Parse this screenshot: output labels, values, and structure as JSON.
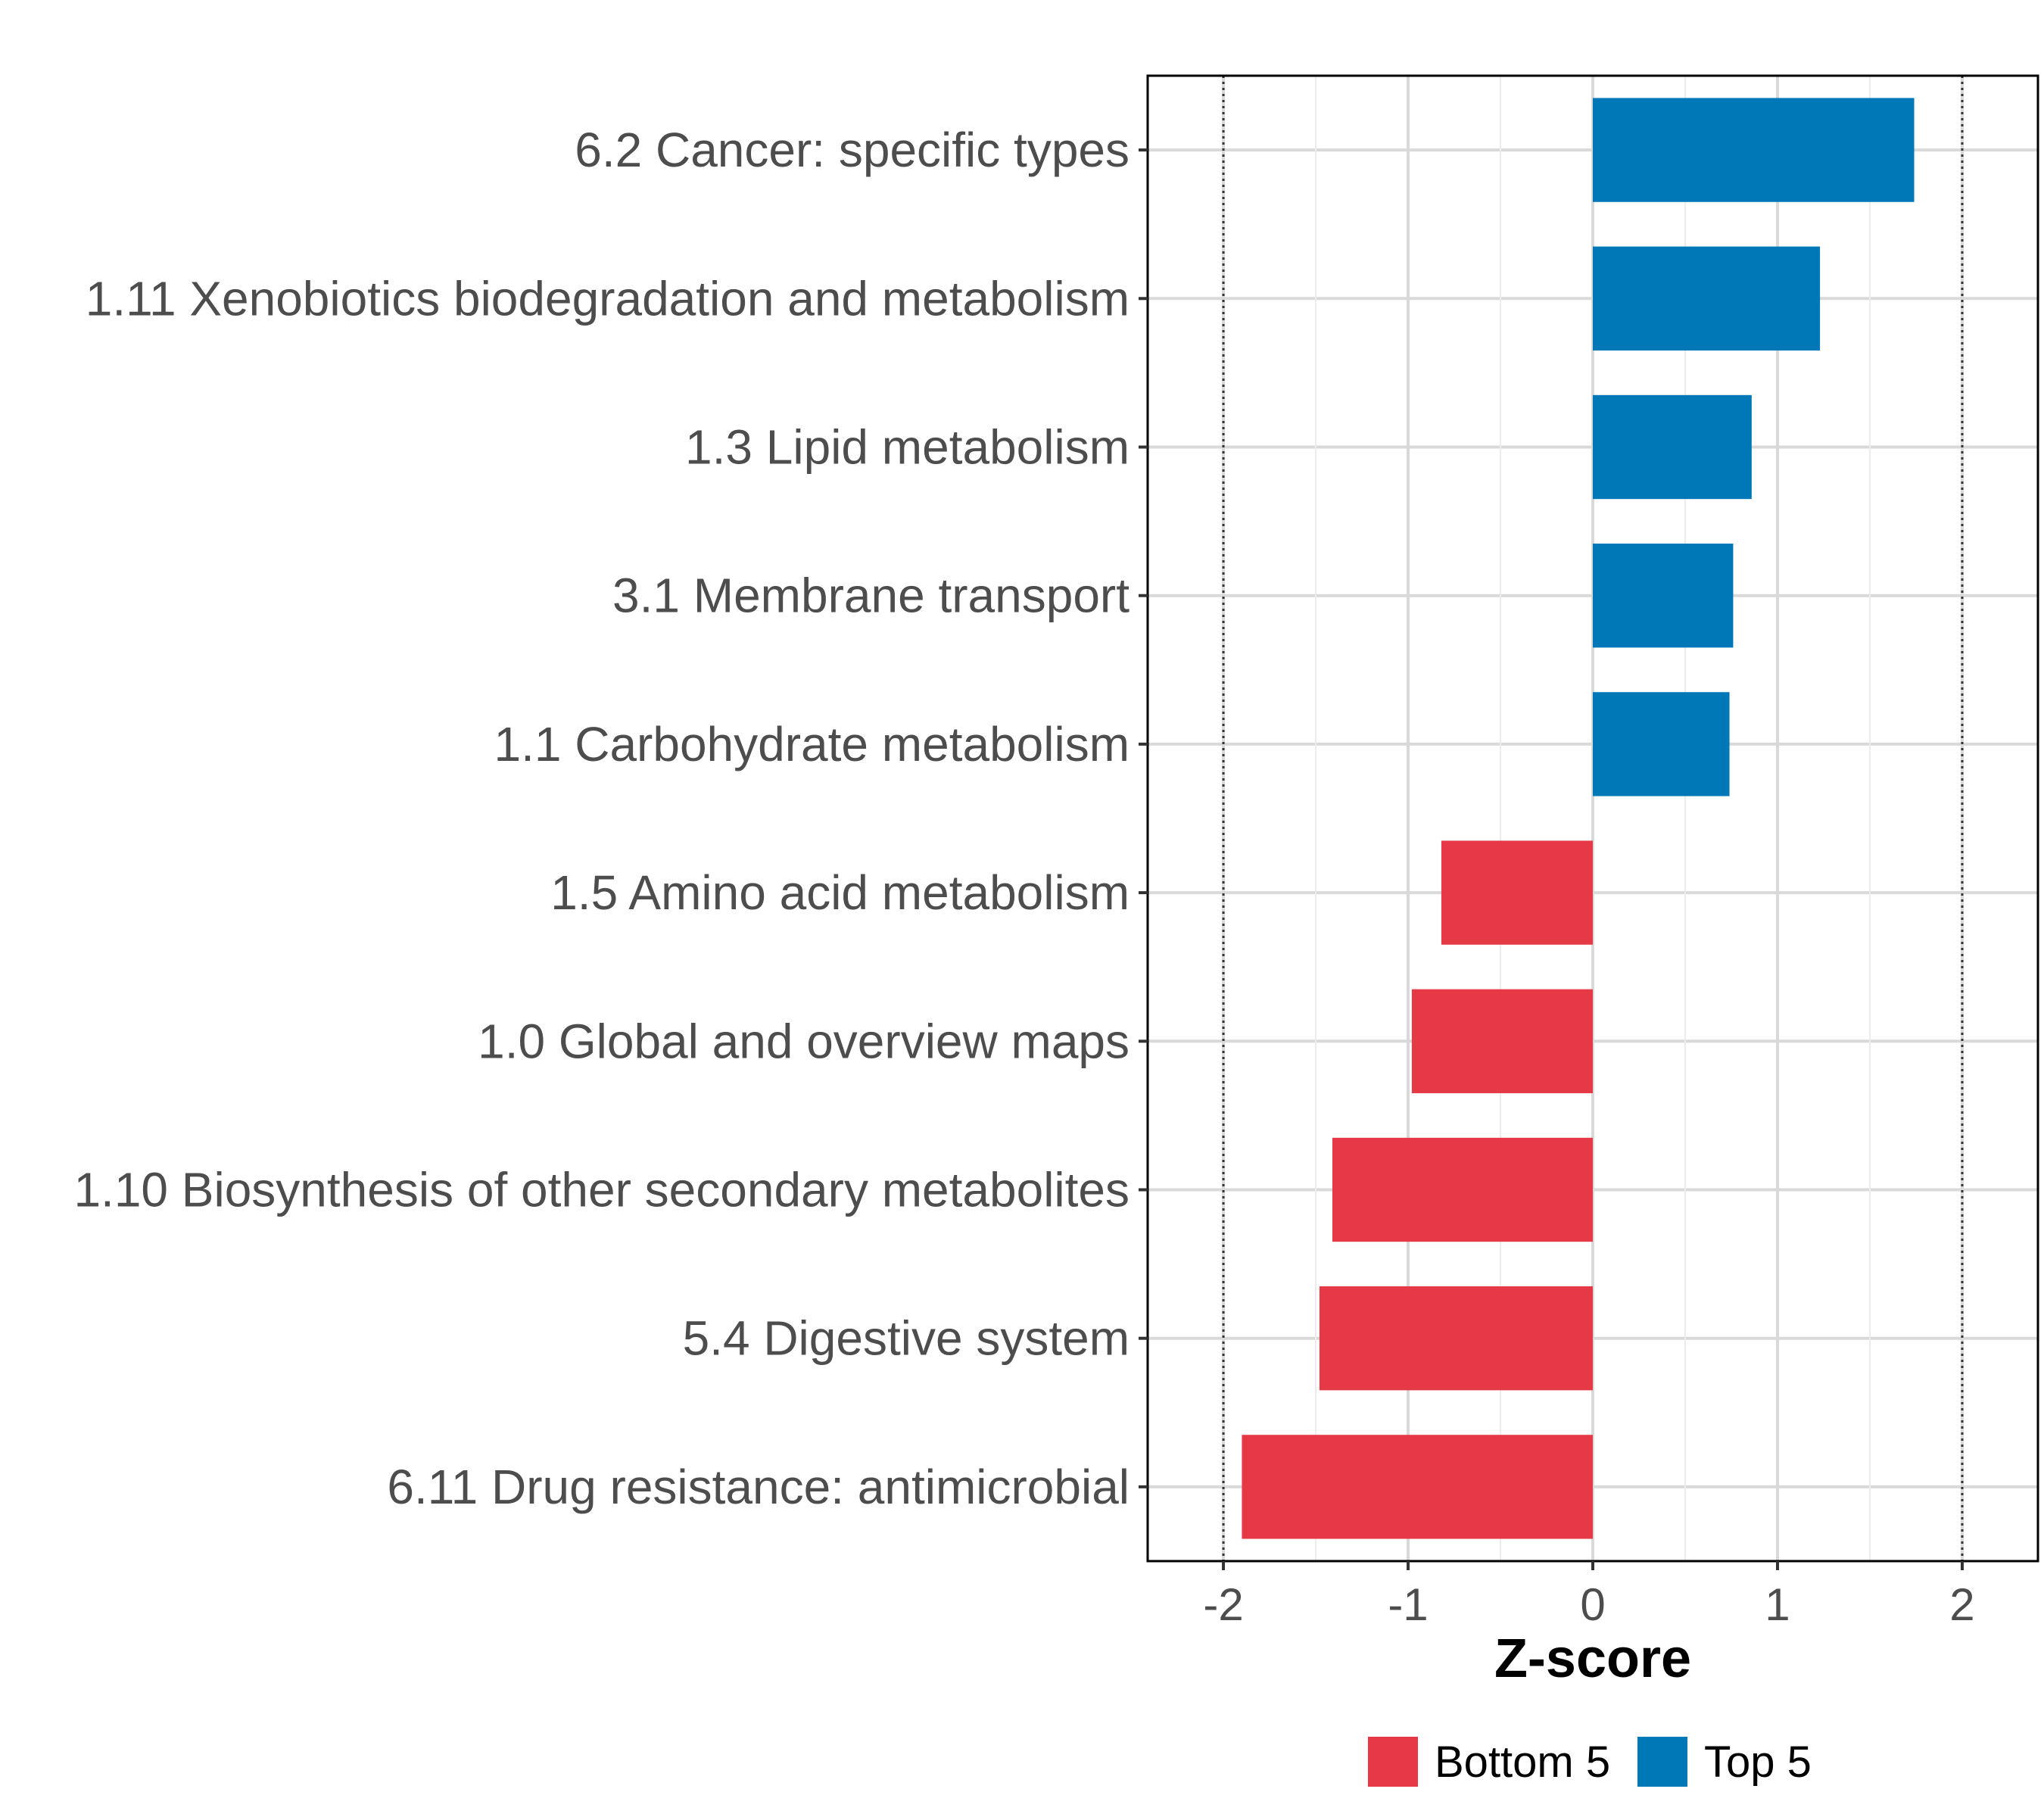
{
  "chart_data": {
    "type": "bar",
    "orientation": "horizontal",
    "categories": [
      "6.2 Cancer: specific types",
      "1.11 Xenobiotics biodegradation and metabolism",
      "1.3 Lipid metabolism",
      "3.1 Membrane transport",
      "1.1 Carbohydrate metabolism",
      "1.5 Amino acid metabolism",
      "1.0 Global and overview maps",
      "1.10 Biosynthesis of other secondary metabolites",
      "5.4 Digestive system",
      "6.11 Drug resistance: antimicrobial"
    ],
    "values": [
      1.74,
      1.23,
      0.86,
      0.76,
      0.74,
      -0.82,
      -0.98,
      -1.41,
      -1.48,
      -1.9
    ],
    "groups": [
      "Top 5",
      "Top 5",
      "Top 5",
      "Top 5",
      "Top 5",
      "Bottom 5",
      "Bottom 5",
      "Bottom 5",
      "Bottom 5",
      "Bottom 5"
    ],
    "title": "",
    "xlabel": "Z-score",
    "ylabel": "",
    "xlim": [
      -2.41,
      2.41
    ],
    "xticks": [
      -2,
      -1,
      0,
      1,
      2
    ],
    "xtick_labels": [
      "-2",
      "-1",
      "0",
      "1",
      "2"
    ],
    "reference_lines": [
      -2,
      2
    ],
    "grid": true,
    "legend": {
      "position": "bottom",
      "entries": [
        {
          "label": "Bottom 5",
          "color": "#E63946"
        },
        {
          "label": "Top 5",
          "color": "#0077B6"
        }
      ]
    },
    "colors": {
      "Bottom 5": "#E63946",
      "Top 5": "#0077B6"
    }
  }
}
